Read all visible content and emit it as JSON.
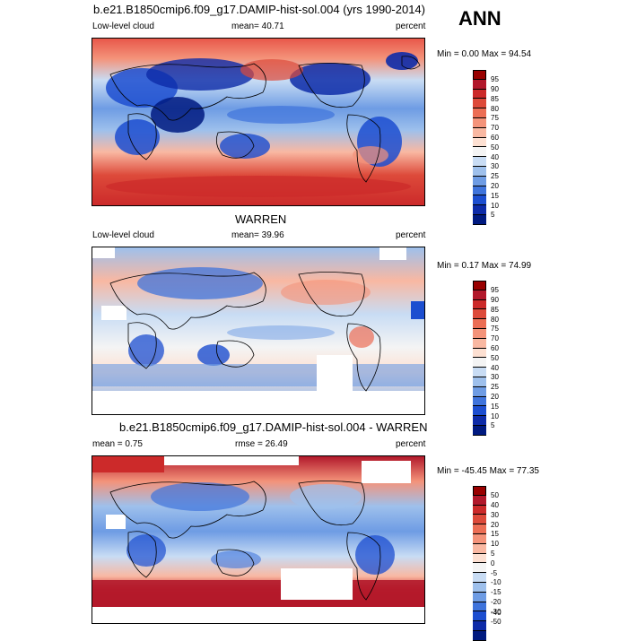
{
  "season": "ANN",
  "panels": [
    {
      "title": "b.e21.B1850cmip6.f09_g17.DAMIP-hist-sol.004 (yrs 1990-2014)",
      "left_label": "Low-level cloud",
      "center_label": "mean=  40.71",
      "right_label": "percent",
      "minmax": "Min =   0.00 Max =  94.54",
      "colorbar_ticks": [
        "95",
        "90",
        "85",
        "80",
        "75",
        "70",
        "60",
        "50",
        "40",
        "30",
        "25",
        "20",
        "15",
        "10",
        "5"
      ],
      "colorbar_colors": [
        "#990000",
        "#b2182b",
        "#cc2a2a",
        "#dd4a3a",
        "#ec6e55",
        "#f4937a",
        "#f9b8a2",
        "#fde0d2",
        "#f4f4f4",
        "#c8dcf4",
        "#9ec0ec",
        "#6e9ce4",
        "#3f74dc",
        "#1c4ed0",
        "#0d2ba8",
        "#001a80"
      ]
    },
    {
      "title": "WARREN",
      "left_label": "Low-level cloud",
      "center_label": "mean=  39.96",
      "right_label": "percent",
      "minmax": "Min =   0.17 Max =  74.99",
      "colorbar_ticks": [
        "95",
        "90",
        "85",
        "80",
        "75",
        "70",
        "60",
        "50",
        "40",
        "30",
        "25",
        "20",
        "15",
        "10",
        "5"
      ],
      "colorbar_colors": [
        "#990000",
        "#b2182b",
        "#cc2a2a",
        "#dd4a3a",
        "#ec6e55",
        "#f4937a",
        "#f9b8a2",
        "#fde0d2",
        "#f4f4f4",
        "#c8dcf4",
        "#9ec0ec",
        "#6e9ce4",
        "#3f74dc",
        "#1c4ed0",
        "#0d2ba8",
        "#001a80"
      ]
    },
    {
      "title": "b.e21.B1850cmip6.f09_g17.DAMIP-hist-sol.004 - WARREN",
      "left_label": "mean =   0.75",
      "center_label": "rmse =  26.49",
      "right_label": "percent",
      "minmax": "Min = -45.45 Max =  77.35",
      "colorbar_ticks": [
        "50",
        "40",
        "30",
        "20",
        "15",
        "10",
        "5",
        "0",
        "-5",
        "-10",
        "-15",
        "-20",
        "-30",
        "-40",
        "-50"
      ],
      "colorbar_colors": [
        "#990000",
        "#b2182b",
        "#cc2a2a",
        "#dd4a3a",
        "#ec6e55",
        "#f4937a",
        "#f9b8a2",
        "#fde0d2",
        "#f4f4f4",
        "#c8dcf4",
        "#9ec0ec",
        "#6e9ce4",
        "#3f74dc",
        "#1c4ed0",
        "#0d2ba8",
        "#001a80"
      ]
    }
  ],
  "chart_data": [
    {
      "type": "heatmap",
      "title": "b.e21.B1850cmip6.f09_g17.DAMIP-hist-sol.004 (yrs 1990-2014)",
      "units": "percent",
      "levels": [
        5,
        10,
        15,
        20,
        25,
        30,
        40,
        50,
        60,
        70,
        75,
        80,
        85,
        90,
        95
      ],
      "mean": 40.71,
      "min": 0.0,
      "max": 94.54
    },
    {
      "type": "heatmap",
      "title": "WARREN",
      "units": "percent",
      "levels": [
        5,
        10,
        15,
        20,
        25,
        30,
        40,
        50,
        60,
        70,
        75,
        80,
        85,
        90,
        95
      ],
      "mean": 39.96,
      "min": 0.17,
      "max": 74.99
    },
    {
      "type": "heatmap",
      "title": "b.e21.B1850cmip6.f09_g17.DAMIP-hist-sol.004 - WARREN",
      "units": "percent",
      "levels": [
        -50,
        -40,
        -30,
        -20,
        -15,
        -10,
        -5,
        0,
        5,
        10,
        15,
        20,
        30,
        40,
        50
      ],
      "mean": 0.75,
      "rmse": 26.49,
      "min": -45.45,
      "max": 77.35
    }
  ]
}
